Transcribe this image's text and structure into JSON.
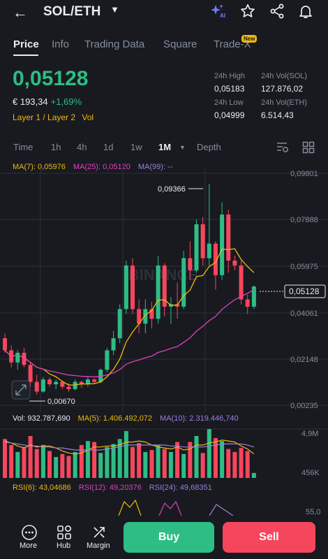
{
  "header": {
    "pair": "SOL/ETH"
  },
  "tabs": [
    "Price",
    "Info",
    "Trading Data",
    "Square",
    "Trade-X"
  ],
  "new_badge": "New",
  "price": {
    "last": "0,05128",
    "fiat": "€ 193,34",
    "change": "+1,69%",
    "tag1": "Layer 1 / Layer 2",
    "tag2": "Vol"
  },
  "stats": {
    "high_label": "24h High",
    "high": "0,05183",
    "vol_sol_label": "24h Vol(SOL)",
    "vol_sol": "127.876,02",
    "low_label": "24h Low",
    "low": "0,04999",
    "vol_eth_label": "24h Vol(ETH)",
    "vol_eth": "6.514,43"
  },
  "timeframes": [
    "Time",
    "1h",
    "4h",
    "1d",
    "1w",
    "1M",
    "Depth"
  ],
  "ma": {
    "ma7": "MA(7): 0,05976",
    "ma25": "MA(25): 0,05120",
    "ma99": "MA(99): --"
  },
  "axis": {
    "p1": "0,09801",
    "p2": "0,07888",
    "p3": "0,05975",
    "p4": "0,04061",
    "p5": "0,02148",
    "p6": "0,00235",
    "current": "0,05128"
  },
  "annotations": {
    "high": "0,09366",
    "low": "0,00670"
  },
  "watermark": "BINANCE",
  "vol": {
    "vol": "Vol: 932.787,690",
    "ma5": "MA(5): 1.406.492,072",
    "ma10": "MA(10): 2.319.446,740",
    "axis_top": "4,9M",
    "axis_bottom": "456K"
  },
  "rsi": {
    "r6": "RSI(6): 43,04686",
    "r12": "RSI(12): 49,20376",
    "r24": "RSI(24): 49,68351",
    "axis": "55,0"
  },
  "nav": {
    "more": "More",
    "hub": "Hub",
    "margin": "Margin"
  },
  "actions": {
    "buy": "Buy",
    "sell": "Sell"
  },
  "colors": {
    "up": "#2ebd85",
    "down": "#f6465d",
    "ma7": "#f0b90b",
    "ma25": "#e040c0",
    "ma99": "#9a7fe0",
    "bg": "#181a20"
  },
  "candles": [
    {
      "o": 0.03,
      "h": 0.032,
      "l": 0.024,
      "c": 0.025
    },
    {
      "o": 0.025,
      "h": 0.027,
      "l": 0.018,
      "c": 0.02
    },
    {
      "o": 0.02,
      "h": 0.025,
      "l": 0.017,
      "c": 0.024
    },
    {
      "o": 0.024,
      "h": 0.026,
      "l": 0.018,
      "c": 0.019
    },
    {
      "o": 0.019,
      "h": 0.02,
      "l": 0.01,
      "c": 0.012
    },
    {
      "o": 0.012,
      "h": 0.015,
      "l": 0.0067,
      "c": 0.008
    },
    {
      "o": 0.008,
      "h": 0.014,
      "l": 0.0075,
      "c": 0.013
    },
    {
      "o": 0.013,
      "h": 0.014,
      "l": 0.01,
      "c": 0.011
    },
    {
      "o": 0.011,
      "h": 0.013,
      "l": 0.009,
      "c": 0.012
    },
    {
      "o": 0.012,
      "h": 0.0125,
      "l": 0.009,
      "c": 0.01
    },
    {
      "o": 0.01,
      "h": 0.0115,
      "l": 0.008,
      "c": 0.009
    },
    {
      "o": 0.009,
      "h": 0.013,
      "l": 0.0085,
      "c": 0.012
    },
    {
      "o": 0.012,
      "h": 0.0125,
      "l": 0.0095,
      "c": 0.011
    },
    {
      "o": 0.011,
      "h": 0.014,
      "l": 0.01,
      "c": 0.013
    },
    {
      "o": 0.013,
      "h": 0.0135,
      "l": 0.011,
      "c": 0.012
    },
    {
      "o": 0.012,
      "h": 0.0175,
      "l": 0.0115,
      "c": 0.017
    },
    {
      "o": 0.017,
      "h": 0.026,
      "l": 0.016,
      "c": 0.025
    },
    {
      "o": 0.025,
      "h": 0.033,
      "l": 0.023,
      "c": 0.03
    },
    {
      "o": 0.03,
      "h": 0.044,
      "l": 0.028,
      "c": 0.042
    },
    {
      "o": 0.042,
      "h": 0.062,
      "l": 0.04,
      "c": 0.06
    },
    {
      "o": 0.06,
      "h": 0.063,
      "l": 0.04,
      "c": 0.042
    },
    {
      "o": 0.042,
      "h": 0.046,
      "l": 0.032,
      "c": 0.036
    },
    {
      "o": 0.036,
      "h": 0.046,
      "l": 0.032,
      "c": 0.042
    },
    {
      "o": 0.042,
      "h": 0.045,
      "l": 0.034,
      "c": 0.038
    },
    {
      "o": 0.038,
      "h": 0.064,
      "l": 0.036,
      "c": 0.06
    },
    {
      "o": 0.06,
      "h": 0.061,
      "l": 0.039,
      "c": 0.043
    },
    {
      "o": 0.043,
      "h": 0.047,
      "l": 0.036,
      "c": 0.044
    },
    {
      "o": 0.044,
      "h": 0.053,
      "l": 0.038,
      "c": 0.043
    },
    {
      "o": 0.043,
      "h": 0.066,
      "l": 0.042,
      "c": 0.063
    },
    {
      "o": 0.063,
      "h": 0.07,
      "l": 0.054,
      "c": 0.058
    },
    {
      "o": 0.058,
      "h": 0.079,
      "l": 0.057,
      "c": 0.077
    },
    {
      "o": 0.077,
      "h": 0.08,
      "l": 0.06,
      "c": 0.063
    },
    {
      "o": 0.063,
      "h": 0.0937,
      "l": 0.06,
      "c": 0.069
    },
    {
      "o": 0.069,
      "h": 0.07,
      "l": 0.05,
      "c": 0.056
    },
    {
      "o": 0.056,
      "h": 0.086,
      "l": 0.054,
      "c": 0.081
    },
    {
      "o": 0.081,
      "h": 0.083,
      "l": 0.057,
      "c": 0.062
    },
    {
      "o": 0.062,
      "h": 0.064,
      "l": 0.058,
      "c": 0.06
    },
    {
      "o": 0.06,
      "h": 0.062,
      "l": 0.044,
      "c": 0.046
    },
    {
      "o": 0.046,
      "h": 0.048,
      "l": 0.04,
      "c": 0.043
    },
    {
      "o": 0.043,
      "h": 0.0518,
      "l": 0.042,
      "c": 0.0513
    }
  ],
  "volumes": [
    3.9,
    3.3,
    2.6,
    3.1,
    4.2,
    2.9,
    3.3,
    2.7,
    2.1,
    2.4,
    2.2,
    2.6,
    3.3,
    3.7,
    3.6,
    2.5,
    3.1,
    3.4,
    3.9,
    4.7,
    3.1,
    3.5,
    2.6,
    2.8,
    3.3,
    2.9,
    2.6,
    3.6,
    2.4,
    3.6,
    4.2,
    2.5,
    4.9,
    4.0,
    3.7,
    2.9,
    2.6,
    3.0,
    2.7,
    0.5
  ],
  "vol_ma5": [
    3.7,
    3.5,
    3.2,
    3.0,
    3.3,
    3.1,
    3.2,
    3.2,
    3.0,
    2.7,
    2.5,
    2.4,
    2.5,
    2.8,
    3.1,
    3.1,
    3.2,
    3.2,
    3.3,
    3.6,
    3.6,
    3.7,
    3.6,
    3.3,
    3.1,
    3.0,
    2.9,
    3.1,
    2.8,
    2.9,
    3.3,
    3.3,
    3.5,
    3.6,
    3.8,
    3.7,
    3.6,
    3.2,
    2.9,
    2.4
  ],
  "vol_ma10": [
    3.6,
    3.5,
    3.4,
    3.3,
    3.2,
    3.2,
    3.1,
    3.1,
    3.0,
    3.0,
    2.9,
    2.8,
    2.8,
    2.8,
    2.8,
    2.8,
    2.9,
    3.0,
    3.1,
    3.3,
    3.3,
    3.3,
    3.3,
    3.3,
    3.3,
    3.3,
    3.2,
    3.2,
    3.1,
    3.1,
    3.1,
    3.1,
    3.2,
    3.3,
    3.4,
    3.4,
    3.4,
    3.4,
    3.3,
    3.1
  ]
}
